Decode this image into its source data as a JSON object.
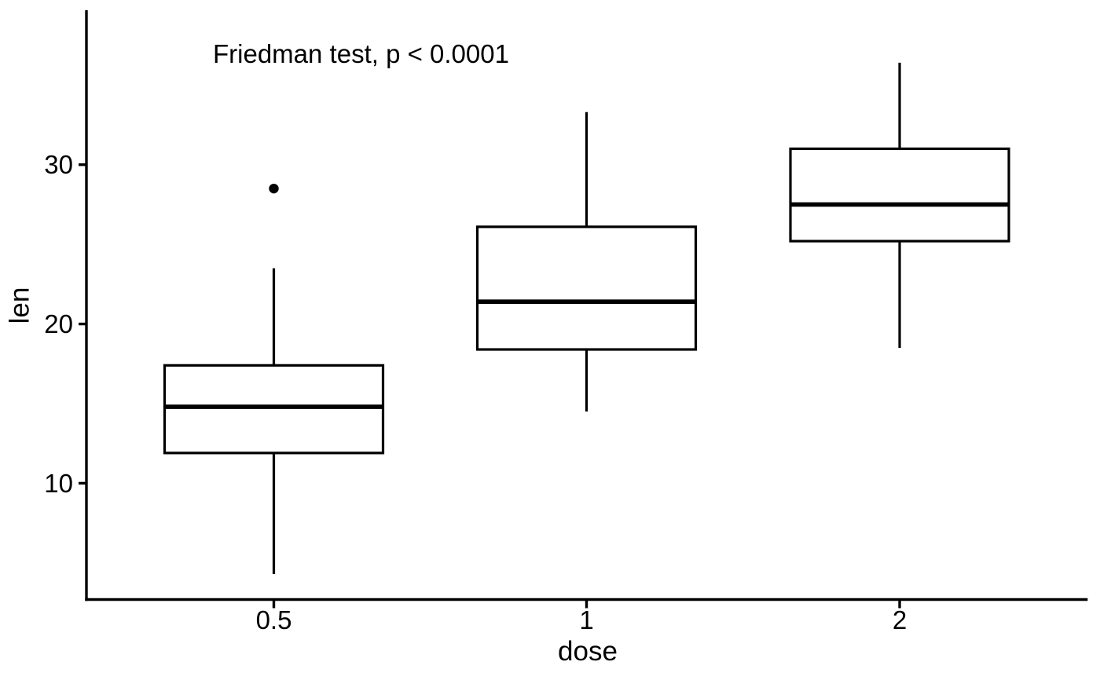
{
  "figure": {
    "background": "#ffffff"
  },
  "chart_data": {
    "type": "boxplot",
    "title": "Friedman test, p < 0.0001",
    "xlabel": "dose",
    "ylabel": "len",
    "categories": [
      "0.5",
      "1",
      "2"
    ],
    "y_ticks": [
      10,
      20,
      30
    ],
    "ylim": [
      2.7,
      39.6
    ],
    "grid": false,
    "legend_position": "none",
    "series": [
      {
        "category": "0.5",
        "whisker_low": 4.3,
        "q1": 11.9,
        "median": 14.8,
        "q3": 17.4,
        "whisker_high": 23.5,
        "outliers": [
          28.5
        ]
      },
      {
        "category": "1",
        "whisker_low": 14.5,
        "q1": 18.4,
        "median": 21.4,
        "q3": 26.1,
        "whisker_high": 33.3,
        "outliers": []
      },
      {
        "category": "2",
        "whisker_low": 18.5,
        "q1": 25.2,
        "median": 27.5,
        "q3": 31.0,
        "whisker_high": 36.4,
        "outliers": []
      }
    ],
    "colors": {
      "stroke": "#000000",
      "box_fill": "#ffffff",
      "text": "#000000",
      "background": "#ffffff"
    }
  }
}
